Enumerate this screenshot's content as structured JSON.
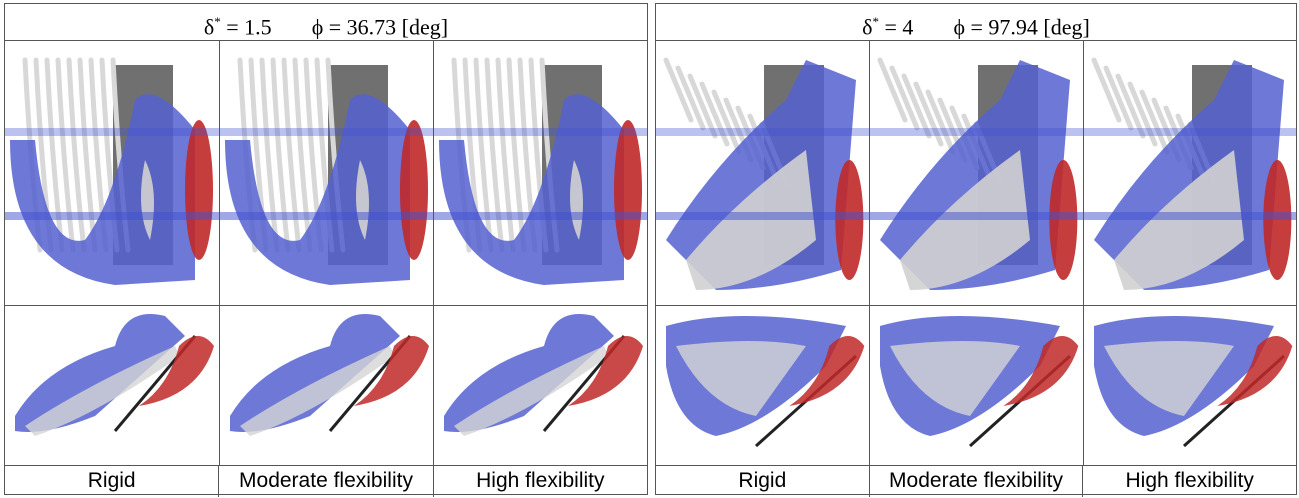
{
  "panels": [
    {
      "delta_symbol": "δ",
      "delta_sup": "*",
      "delta_value": "= 1.5",
      "phi": "ϕ = 36.73 [deg]",
      "columns": [
        "Rigid",
        "Moderate flexibility",
        "High flexibility"
      ]
    },
    {
      "delta_symbol": "δ",
      "delta_sup": "*",
      "delta_value": "= 4",
      "phi": "ϕ = 97.94 [deg]",
      "columns": [
        "Rigid",
        "Moderate flexibility",
        "High flexibility"
      ]
    }
  ]
}
